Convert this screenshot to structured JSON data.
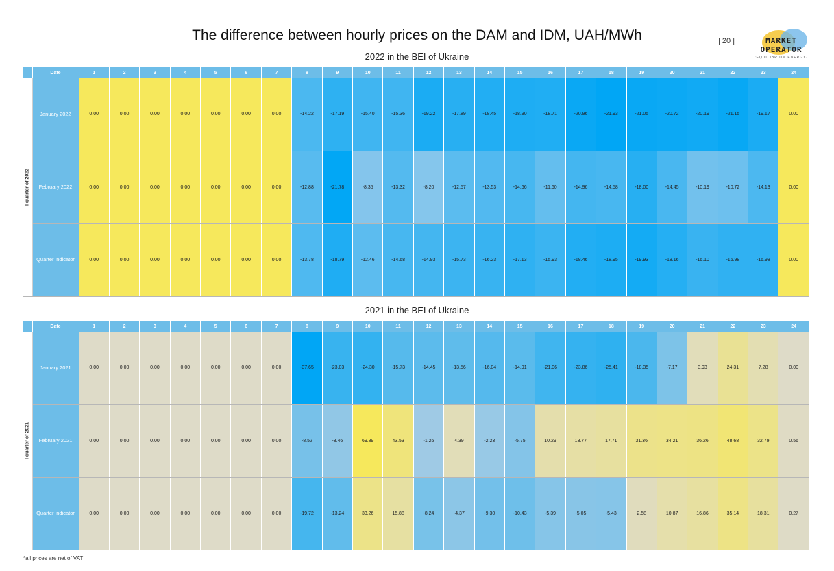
{
  "title": "The difference between hourly prices on the DAM and IDM, UAH/MWh",
  "page_number": "| 20 |",
  "logo": {
    "line1": "MARKET",
    "line2": "OPERATOR",
    "tagline": "/EQUILIBRIUM ENERGY/"
  },
  "footnote": "*all prices are net of VAT",
  "chart_data": [
    {
      "type": "table",
      "title": "2022 in the BEI of Ukraine",
      "header_label": "Date",
      "group_label": "I quarter of 2022",
      "columns": [
        "1",
        "2",
        "3",
        "4",
        "5",
        "6",
        "7",
        "8",
        "9",
        "10",
        "11",
        "12",
        "13",
        "14",
        "15",
        "16",
        "17",
        "18",
        "19",
        "20",
        "21",
        "22",
        "23",
        "24"
      ],
      "rows": [
        {
          "label": "January 2022",
          "values": [
            "0.00",
            "0.00",
            "0.00",
            "0.00",
            "0.00",
            "0.00",
            "0.00",
            "-14.22",
            "-17.19",
            "-15.40",
            "-15.36",
            "-19.22",
            "-17.89",
            "-18.45",
            "-18.90",
            "-18.71",
            "-20.96",
            "-21.93",
            "-21.05",
            "-20.72",
            "-20.19",
            "-21.15",
            "-19.17",
            "0.00"
          ]
        },
        {
          "label": "February 2022",
          "values": [
            "0.00",
            "0.00",
            "0.00",
            "0.00",
            "0.00",
            "0.00",
            "0.00",
            "-12.88",
            "-21.78",
            "-8.35",
            "-13.32",
            "-8.20",
            "-12.57",
            "-13.53",
            "-14.66",
            "-11.60",
            "-14.96",
            "-14.58",
            "-18.00",
            "-14.45",
            "-10.19",
            "-10.72",
            "-14.13",
            "0.00"
          ]
        },
        {
          "label": "Quarter indicator",
          "values": [
            "0.00",
            "0.00",
            "0.00",
            "0.00",
            "0.00",
            "0.00",
            "0.00",
            "-13.78",
            "-18.79",
            "-12.46",
            "-14.68",
            "-14.93",
            "-15.73",
            "-16.23",
            "-17.13",
            "-15.93",
            "-18.46",
            "-18.95",
            "-19.93",
            "-18.16",
            "-16.10",
            "-16.98",
            "-16.98",
            "0.00"
          ]
        }
      ]
    },
    {
      "type": "table",
      "title": "2021 in the BEI of Ukraine",
      "header_label": "Date",
      "group_label": "I quarter of 2021",
      "columns": [
        "1",
        "2",
        "3",
        "4",
        "5",
        "6",
        "7",
        "8",
        "9",
        "10",
        "11",
        "12",
        "13",
        "14",
        "15",
        "16",
        "17",
        "18",
        "19",
        "20",
        "21",
        "22",
        "23",
        "24"
      ],
      "rows": [
        {
          "label": "January 2021",
          "values": [
            "0.00",
            "0.00",
            "0.00",
            "0.00",
            "0.00",
            "0.00",
            "0.00",
            "-37.65",
            "-23.03",
            "-24.30",
            "-15.73",
            "-14.45",
            "-13.56",
            "-16.04",
            "-14.91",
            "-21.06",
            "-23.86",
            "-25.41",
            "-18.35",
            "-7.17",
            "3.93",
            "24.31",
            "7.28",
            "0.00"
          ]
        },
        {
          "label": "February 2021",
          "values": [
            "0.00",
            "0.00",
            "0.00",
            "0.00",
            "0.00",
            "0.00",
            "0.00",
            "-8.52",
            "-3.46",
            "69.89",
            "43.53",
            "-1.26",
            "4.39",
            "-2.23",
            "-5.75",
            "10.29",
            "13.77",
            "17.71",
            "31.36",
            "34.21",
            "36.26",
            "48.68",
            "32.79",
            "0.56"
          ]
        },
        {
          "label": "Quarter indicator",
          "values": [
            "0.00",
            "0.00",
            "0.00",
            "0.00",
            "0.00",
            "0.00",
            "0.00",
            "-19.72",
            "-13.24",
            "33.26",
            "15.88",
            "-8.24",
            "-4.37",
            "-9.30",
            "-10.43",
            "-5.39",
            "-5.05",
            "-5.43",
            "2.58",
            "10.87",
            "16.86",
            "35.14",
            "18.31",
            "0.27"
          ]
        }
      ]
    }
  ]
}
